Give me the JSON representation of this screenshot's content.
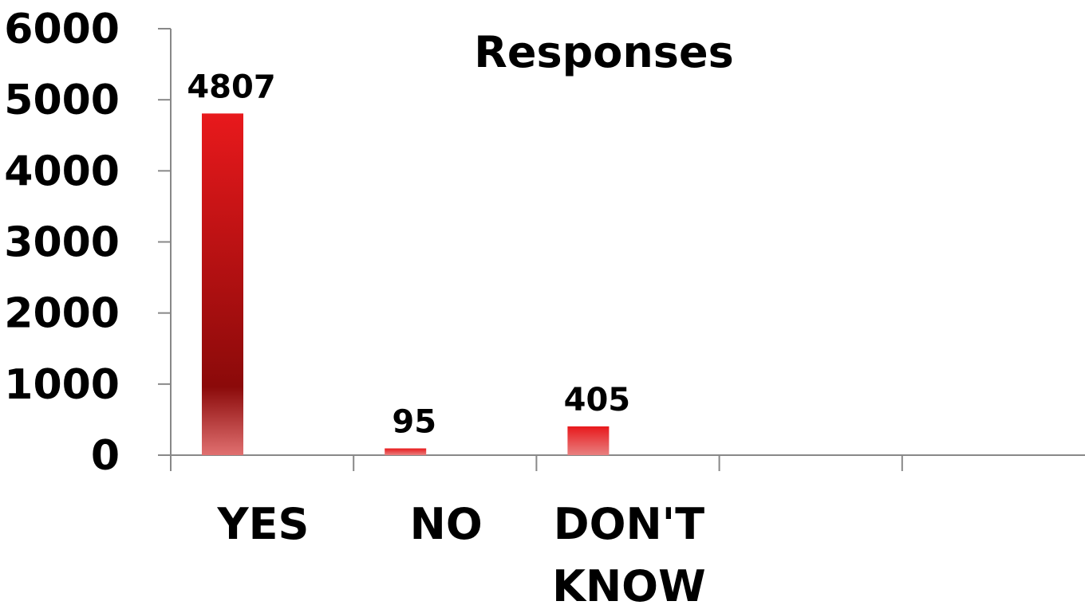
{
  "chart_data": {
    "type": "bar",
    "title": "Responses",
    "categories": [
      "YES",
      "NO",
      "DON'T KNOW"
    ],
    "values": [
      4807,
      95,
      405
    ],
    "data_labels": [
      "4807",
      "95",
      "405"
    ],
    "ylim": [
      0,
      6000
    ],
    "yticks": [
      0,
      1000,
      2000,
      3000,
      4000,
      5000,
      6000
    ],
    "ytick_labels": [
      "0",
      "1000",
      "2000",
      "3000",
      "4000",
      "5000",
      "6000"
    ],
    "category_slots": 5,
    "grid": false,
    "legend": "none",
    "bar_color": "#e8191c",
    "bar_color_dark": "#8b0a0a",
    "axis_color": "#888888"
  }
}
